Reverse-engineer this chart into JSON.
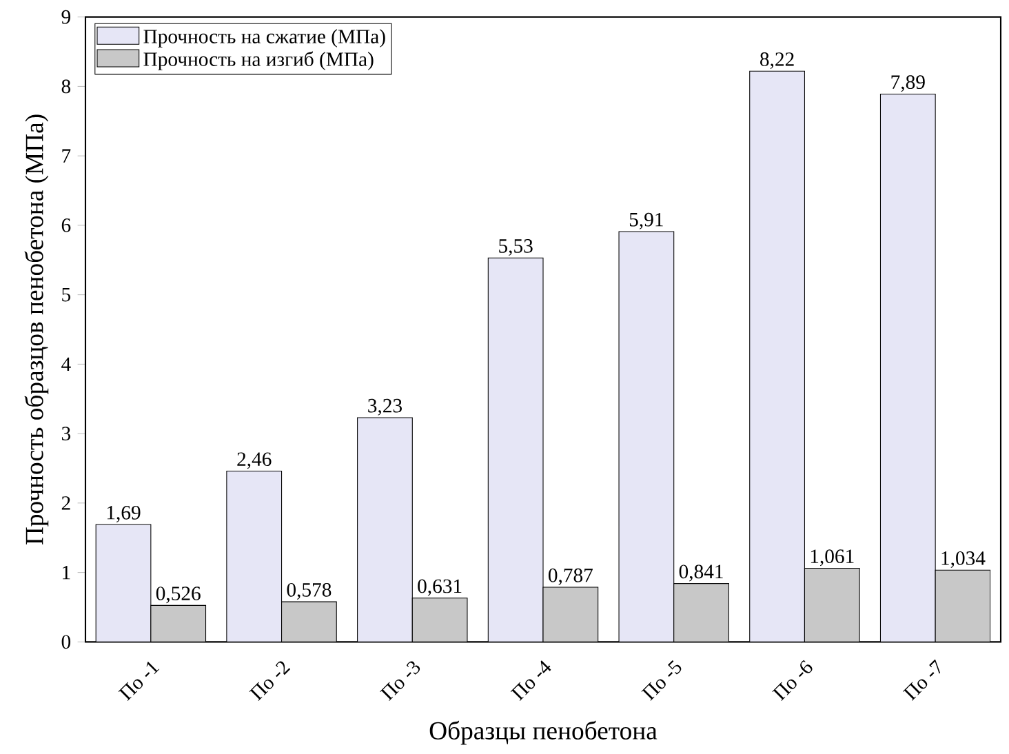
{
  "chart_data": {
    "type": "bar",
    "xlabel": "Образцы пенобетона",
    "ylabel": "Прочность образцов пенобетона (МПа)",
    "categories": [
      "По -1",
      "По -2",
      "По -3",
      "По -4",
      "По -5",
      "По -6",
      "По -7"
    ],
    "series": [
      {
        "name": "Прочность на сжатие (МПа)",
        "color": "#e6e6f6",
        "values": [
          1.69,
          2.46,
          3.23,
          5.53,
          5.91,
          8.22,
          7.89
        ],
        "value_labels": [
          "1,69",
          "2,46",
          "3,23",
          "5,53",
          "5,91",
          "8,22",
          "7,89"
        ]
      },
      {
        "name": "Прочность на изгиб (МПа)",
        "color": "#c8c8c8",
        "values": [
          0.526,
          0.578,
          0.631,
          0.787,
          0.841,
          1.061,
          1.034
        ],
        "value_labels": [
          "0,526",
          "0,578",
          "0,631",
          "0,787",
          "0,841",
          "1,061",
          "1,034"
        ]
      }
    ],
    "ylim": [
      0,
      9
    ],
    "yticks": [
      0,
      1,
      2,
      3,
      4,
      5,
      6,
      7,
      8,
      9
    ],
    "grid": false,
    "legend": "top left"
  }
}
